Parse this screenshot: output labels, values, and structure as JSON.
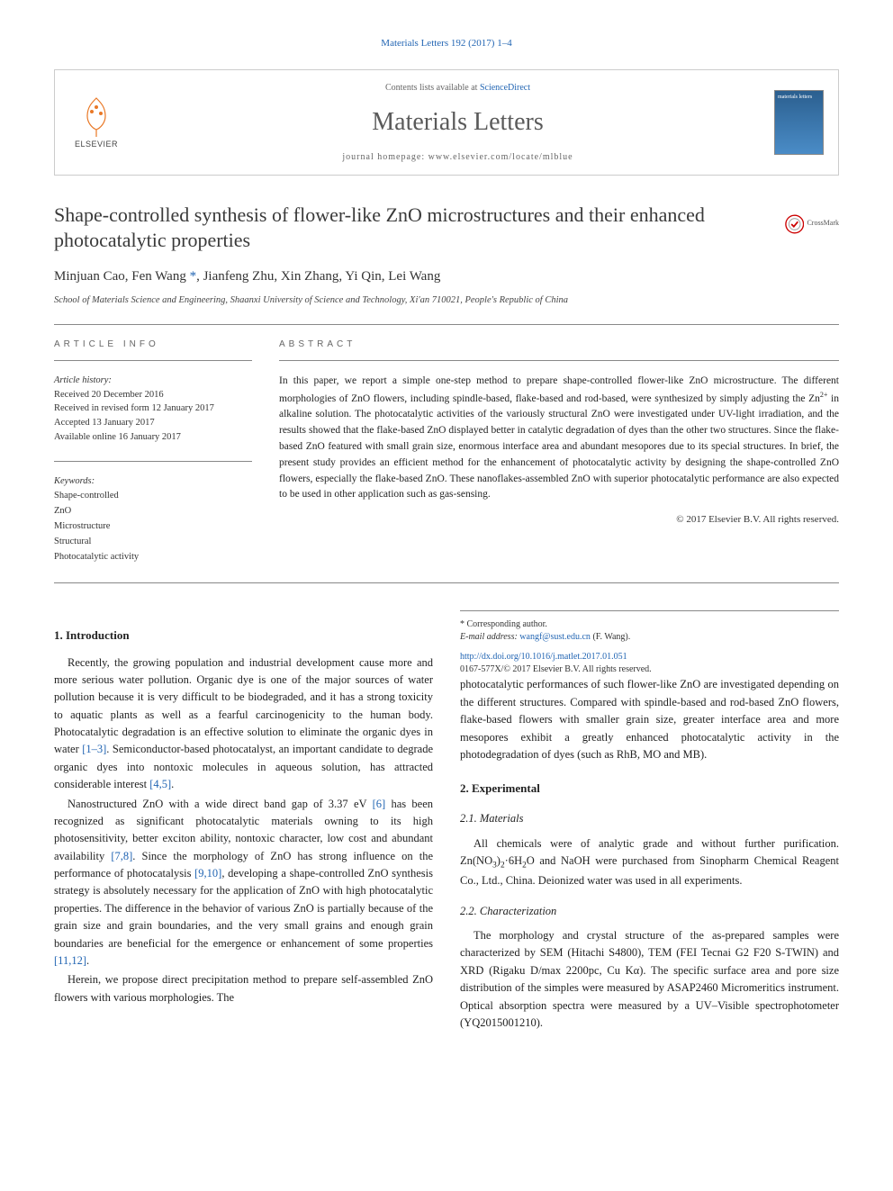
{
  "citation": "Materials Letters 192 (2017) 1–4",
  "header": {
    "publisher_name": "ELSEVIER",
    "contents_prefix": "Contents lists available at ",
    "contents_link": "ScienceDirect",
    "journal_name": "Materials Letters",
    "homepage_prefix": "journal homepage: ",
    "homepage_url": "www.elsevier.com/locate/mlblue",
    "cover_text": "materials letters"
  },
  "title": "Shape-controlled synthesis of flower-like ZnO microstructures and their enhanced photocatalytic properties",
  "crossmark_label": "CrossMark",
  "authors_html": "Minjuan Cao, Fen Wang <span class='author-star'>*</span>, Jianfeng Zhu, Xin Zhang, Yi Qin, Lei Wang",
  "affiliation": "School of Materials Science and Engineering, Shaanxi University of Science and Technology, Xi'an 710021, People's Republic of China",
  "article_info_label": "ARTICLE INFO",
  "abstract_label": "ABSTRACT",
  "history": {
    "label": "Article history:",
    "received": "Received 20 December 2016",
    "revised": "Received in revised form 12 January 2017",
    "accepted": "Accepted 13 January 2017",
    "online": "Available online 16 January 2017"
  },
  "keywords": {
    "label": "Keywords:",
    "items": [
      "Shape-controlled",
      "ZnO",
      "Microstructure",
      "Structural",
      "Photocatalytic activity"
    ]
  },
  "abstract_html": "In this paper, we report a simple one-step method to prepare shape-controlled flower-like ZnO microstructure. The different morphologies of ZnO flowers, including spindle-based, flake-based and rod-based, were synthesized by simply adjusting the Zn<span class='sup'>2+</span> in alkaline solution. The photocatalytic activities of the variously structural ZnO were investigated under UV-light irradiation, and the results showed that the flake-based ZnO displayed better in catalytic degradation of dyes than the other two structures. Since the flake-based ZnO featured with small grain size, enormous interface area and abundant mesopores due to its special structures. In brief, the present study provides an efficient method for the enhancement of photocatalytic activity by designing the shape-controlled ZnO flowers, especially the flake-based ZnO. These nanoflakes-assembled ZnO with superior photocatalytic performance are also expected to be used in other application such as gas-sensing.",
  "abstract_copyright": "© 2017 Elsevier B.V. All rights reserved.",
  "sections": {
    "intro_heading": "1. Introduction",
    "intro_p1_html": "Recently, the growing population and industrial development cause more and more serious water pollution. Organic dye is one of the major sources of water pollution because it is very difficult to be biodegraded, and it has a strong toxicity to aquatic plants as well as a fearful carcinogenicity to the human body. Photocatalytic degradation is an effective solution to eliminate the organic dyes in water <span class='ref-link'>[1–3]</span>. Semiconductor-based photocatalyst, an important candidate to degrade organic dyes into nontoxic molecules in aqueous solution, has attracted considerable interest <span class='ref-link'>[4,5]</span>.",
    "intro_p2_html": "Nanostructured ZnO with a wide direct band gap of 3.37 eV <span class='ref-link'>[6]</span> has been recognized as significant photocatalytic materials owning to its high photosensitivity, better exciton ability, nontoxic character, low cost and abundant availability <span class='ref-link'>[7,8]</span>. Since the morphology of ZnO has strong influence on the performance of photocatalysis <span class='ref-link'>[9,10]</span>, developing a shape-controlled ZnO synthesis strategy is absolutely necessary for the application of ZnO with high photocatalytic properties. The difference in the behavior of various ZnO is partially because of the grain size and grain boundaries, and the very small grains and enough grain boundaries are beneficial for the emergence or enhancement of some properties <span class='ref-link'>[11,12]</span>.",
    "intro_p3_html": "Herein, we propose direct precipitation method to prepare self-assembled ZnO flowers with various morphologies. The",
    "intro_p4_html": "photocatalytic performances of such flower-like ZnO are investigated depending on the different structures. Compared with spindle-based and rod-based ZnO flowers, flake-based flowers with smaller grain size, greater interface area and more mesopores exhibit a greatly enhanced photocatalytic activity in the photodegradation of dyes (such as RhB, MO and MB).",
    "exp_heading": "2. Experimental",
    "materials_heading": "2.1. Materials",
    "materials_p_html": "All chemicals were of analytic grade and without further purification. Zn(NO<span style='font-size:0.75em;vertical-align:sub;'>3</span>)<span style='font-size:0.75em;vertical-align:sub;'>2</span>·6H<span style='font-size:0.75em;vertical-align:sub;'>2</span>O and NaOH were purchased from Sinopharm Chemical Reagent Co., Ltd., China. Deionized water was used in all experiments.",
    "char_heading": "2.2. Characterization",
    "char_p_html": "The morphology and crystal structure of the as-prepared samples were characterized by SEM (Hitachi S4800), TEM (FEI Tecnai G2 F20 S-TWIN) and XRD (Rigaku D/max 2200pc, Cu Kα). The specific surface area and pore size distribution of the simples were measured by ASAP2460 Micromeritics instrument. Optical absorption spectra were measured by a UV–Visible spectrophotometer (YQ2015001210)."
  },
  "footer": {
    "corresponding_label": "* Corresponding author.",
    "email_label": "E-mail address: ",
    "email": "wangf@sust.edu.cn",
    "email_suffix": " (F. Wang).",
    "doi": "http://dx.doi.org/10.1016/j.matlet.2017.01.051",
    "issn_line": "0167-577X/© 2017 Elsevier B.V. All rights reserved."
  },
  "colors": {
    "link": "#2265b3",
    "text": "#222222",
    "logo_orange": "#e97826",
    "border": "#cccccc"
  }
}
